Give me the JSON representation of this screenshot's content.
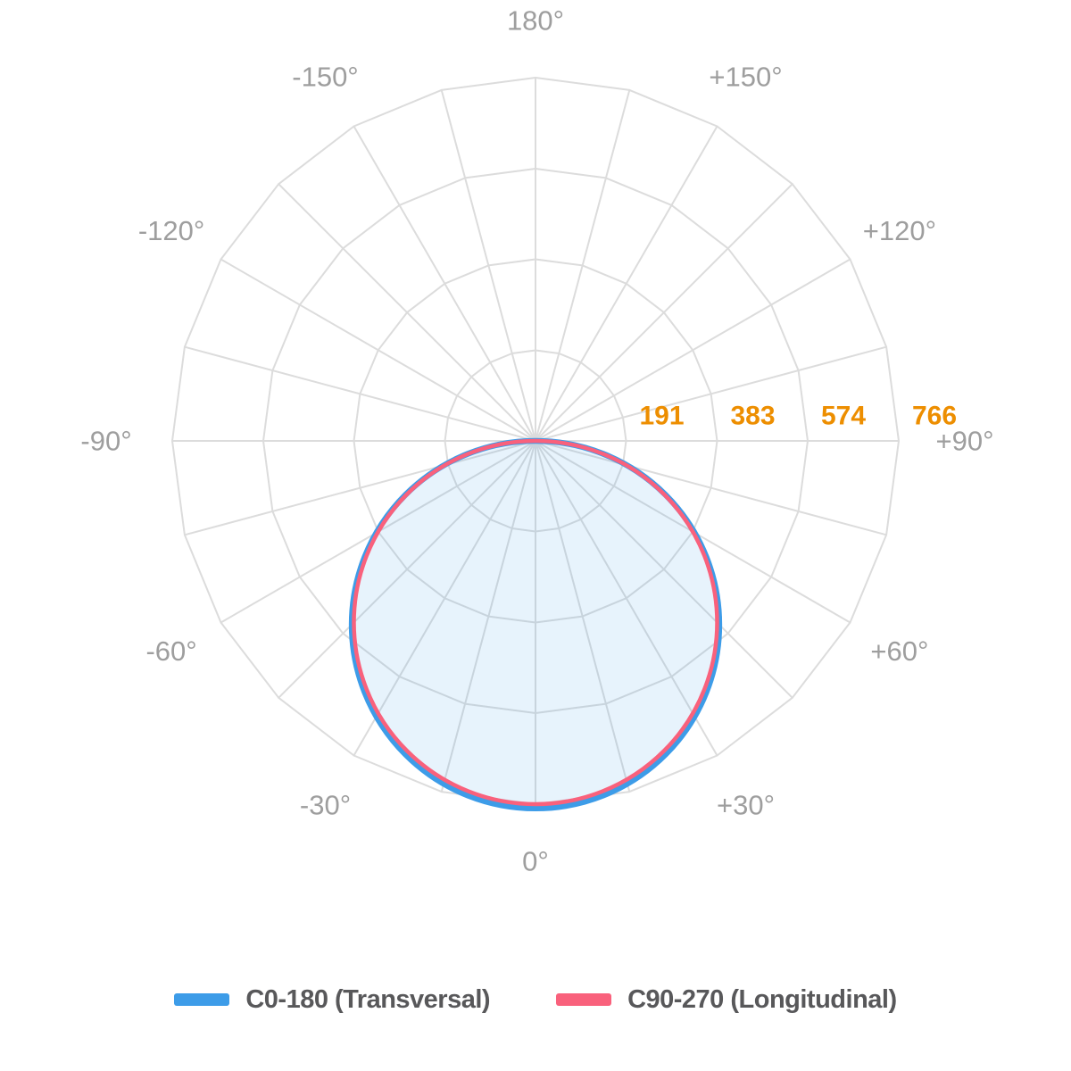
{
  "chart_data": {
    "type": "polar",
    "kind": "photometric-light-distribution",
    "angle_axis": {
      "zero_direction": "down",
      "spoke_step_deg": 15,
      "labels": [
        {
          "angle": 0,
          "text": "0°"
        },
        {
          "angle": 30,
          "text": "+30°"
        },
        {
          "angle": 60,
          "text": "+60°"
        },
        {
          "angle": 90,
          "text": "+90°"
        },
        {
          "angle": 120,
          "text": "+120°"
        },
        {
          "angle": 150,
          "text": "+150°"
        },
        {
          "angle": 180,
          "text": "180°"
        },
        {
          "angle": -150,
          "text": "-150°"
        },
        {
          "angle": -120,
          "text": "-120°"
        },
        {
          "angle": -90,
          "text": "-90°"
        },
        {
          "angle": -60,
          "text": "-60°"
        },
        {
          "angle": -30,
          "text": "-30°"
        }
      ]
    },
    "radial_axis": {
      "ticks": [
        191,
        383,
        574,
        766
      ],
      "max": 766
    },
    "series": [
      {
        "name": "C0-180 (Transversal)",
        "color": "#3d9ce8",
        "profile": "cosine",
        "peak": 775,
        "fill": "rgba(61, 156, 232, 0.12)"
      },
      {
        "name": "C90-270 (Longitudinal)",
        "color": "#f9617c",
        "profile": "cosine",
        "peak": 766,
        "fill": "none"
      }
    ],
    "colors": {
      "grid": "#dcdcdc",
      "angle_label": "#9e9e9e",
      "radial_tick": "#ed8e00"
    },
    "legend_position": "bottom"
  },
  "legend": {
    "items": [
      {
        "label": "C0-180 (Transversal)",
        "color": "#3d9ce8"
      },
      {
        "label": "C90-270 (Longitudinal)",
        "color": "#f9617c"
      }
    ]
  }
}
